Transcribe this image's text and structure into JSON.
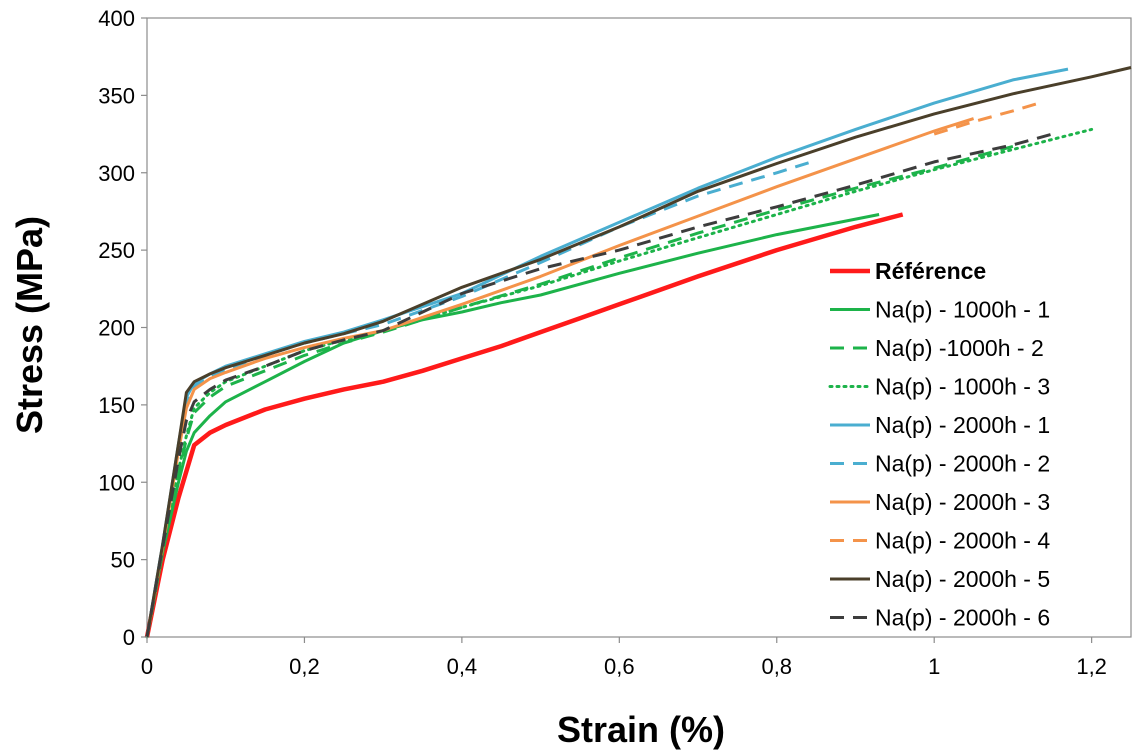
{
  "chart_data": {
    "type": "line",
    "xlabel": "Strain (%)",
    "ylabel": "Stress (MPa)",
    "xlim": [
      0,
      1.25
    ],
    "ylim": [
      0,
      400
    ],
    "x_ticks": [
      0,
      0.2,
      0.4,
      0.6,
      0.8,
      1,
      1.2
    ],
    "x_tick_labels": [
      "0",
      "0,2",
      "0,4",
      "0,6",
      "0,8",
      "1",
      "1,2"
    ],
    "y_ticks": [
      0,
      50,
      100,
      150,
      200,
      250,
      300,
      350,
      400
    ],
    "y_tick_labels": [
      "0",
      "50",
      "100",
      "150",
      "200",
      "250",
      "300",
      "350",
      "400"
    ],
    "grid": false,
    "legend_position": "right",
    "series": [
      {
        "name": "Référence",
        "color": "#ff1a1a",
        "dash": "solid",
        "width": 4.5,
        "bold": true,
        "x": [
          0,
          0.02,
          0.04,
          0.06,
          0.08,
          0.1,
          0.15,
          0.2,
          0.25,
          0.3,
          0.35,
          0.4,
          0.45,
          0.5,
          0.55,
          0.6,
          0.7,
          0.8,
          0.9,
          0.96
        ],
        "y": [
          0,
          50,
          90,
          124,
          132,
          137,
          147,
          154,
          160,
          165,
          172,
          180,
          188,
          197,
          206,
          215,
          233,
          250,
          265,
          273
        ]
      },
      {
        "name": "Na(p) - 1000h - 1",
        "color": "#1db34a",
        "dash": "solid",
        "width": 3,
        "x": [
          0,
          0.02,
          0.04,
          0.05,
          0.06,
          0.08,
          0.1,
          0.15,
          0.2,
          0.25,
          0.3,
          0.35,
          0.4,
          0.45,
          0.5,
          0.6,
          0.7,
          0.8,
          0.93
        ],
        "y": [
          0,
          55,
          100,
          120,
          132,
          143,
          152,
          165,
          178,
          190,
          198,
          205,
          210,
          216,
          221,
          235,
          248,
          260,
          273
        ]
      },
      {
        "name": "Na(p)  -1000h - 2",
        "color": "#1db34a",
        "dash": "14 9",
        "width": 3,
        "x": [
          0,
          0.02,
          0.04,
          0.05,
          0.06,
          0.08,
          0.1,
          0.15,
          0.2,
          0.25,
          0.3,
          0.4,
          0.5,
          0.6,
          0.7,
          0.8,
          0.9,
          1.0,
          1.1
        ],
        "y": [
          0,
          55,
          105,
          128,
          145,
          155,
          162,
          172,
          182,
          190,
          197,
          213,
          228,
          245,
          261,
          276,
          290,
          303,
          317
        ]
      },
      {
        "name": "Na(p) - 1000h - 3",
        "color": "#1db34a",
        "dash": "2 5",
        "width": 3,
        "x": [
          0,
          0.02,
          0.04,
          0.05,
          0.06,
          0.08,
          0.1,
          0.15,
          0.2,
          0.25,
          0.3,
          0.4,
          0.5,
          0.6,
          0.7,
          0.8,
          0.9,
          1.0,
          1.1,
          1.2
        ],
        "y": [
          0,
          55,
          108,
          130,
          148,
          158,
          165,
          175,
          185,
          192,
          198,
          213,
          227,
          243,
          258,
          273,
          288,
          302,
          315,
          328
        ]
      },
      {
        "name": "Na(p) - 2000h - 1",
        "color": "#4aaed0",
        "dash": "solid",
        "width": 3,
        "x": [
          0,
          0.02,
          0.04,
          0.05,
          0.06,
          0.08,
          0.1,
          0.15,
          0.2,
          0.25,
          0.3,
          0.4,
          0.5,
          0.6,
          0.7,
          0.8,
          0.9,
          1.0,
          1.1,
          1.17
        ],
        "y": [
          0,
          60,
          125,
          155,
          164,
          170,
          175,
          183,
          191,
          197,
          205,
          222,
          246,
          268,
          290,
          310,
          328,
          345,
          360,
          367
        ]
      },
      {
        "name": "Na(p) - 2000h - 2",
        "color": "#4aaed0",
        "dash": "14 9",
        "width": 3,
        "x": [
          0,
          0.02,
          0.04,
          0.05,
          0.06,
          0.08,
          0.1,
          0.15,
          0.2,
          0.25,
          0.3,
          0.4,
          0.5,
          0.6,
          0.7,
          0.8,
          0.85
        ],
        "y": [
          0,
          60,
          120,
          150,
          162,
          168,
          173,
          182,
          190,
          196,
          202,
          220,
          242,
          265,
          285,
          300,
          308
        ]
      },
      {
        "name": "Na(p) - 2000h - 3",
        "color": "#f4934a",
        "dash": "solid",
        "width": 3,
        "x": [
          0,
          0.02,
          0.04,
          0.05,
          0.06,
          0.08,
          0.1,
          0.15,
          0.2,
          0.25,
          0.3,
          0.4,
          0.5,
          0.6,
          0.7,
          0.8,
          0.9,
          1.0,
          1.05
        ],
        "y": [
          0,
          58,
          120,
          148,
          160,
          167,
          171,
          180,
          187,
          193,
          198,
          215,
          233,
          253,
          272,
          291,
          309,
          327,
          335
        ]
      },
      {
        "name": "Na(p) - 2000h - 4",
        "color": "#f4934a",
        "dash": "14 9",
        "width": 3,
        "x": [
          1.0,
          1.05,
          1.1,
          1.14
        ],
        "y": [
          325,
          333,
          340,
          346
        ]
      },
      {
        "name": "Na(p) - 2000h - 5",
        "color": "#4a3f2a",
        "dash": "solid",
        "width": 3,
        "x": [
          0,
          0.02,
          0.04,
          0.05,
          0.06,
          0.08,
          0.1,
          0.15,
          0.2,
          0.25,
          0.3,
          0.4,
          0.5,
          0.6,
          0.7,
          0.8,
          0.9,
          1.0,
          1.1,
          1.2,
          1.25
        ],
        "y": [
          0,
          60,
          125,
          158,
          165,
          170,
          174,
          182,
          190,
          196,
          204,
          226,
          244,
          265,
          288,
          306,
          323,
          338,
          351,
          362,
          368
        ]
      },
      {
        "name": "Na(p) - 2000h - 6",
        "color": "#3d3d3d",
        "dash": "14 9",
        "width": 3,
        "x": [
          0,
          0.02,
          0.04,
          0.05,
          0.06,
          0.08,
          0.1,
          0.15,
          0.2,
          0.25,
          0.3,
          0.4,
          0.5,
          0.6,
          0.7,
          0.8,
          0.9,
          1.0,
          1.1,
          1.15
        ],
        "y": [
          0,
          58,
          115,
          140,
          152,
          160,
          166,
          175,
          185,
          192,
          198,
          222,
          238,
          250,
          265,
          278,
          292,
          307,
          318,
          325
        ]
      }
    ]
  }
}
